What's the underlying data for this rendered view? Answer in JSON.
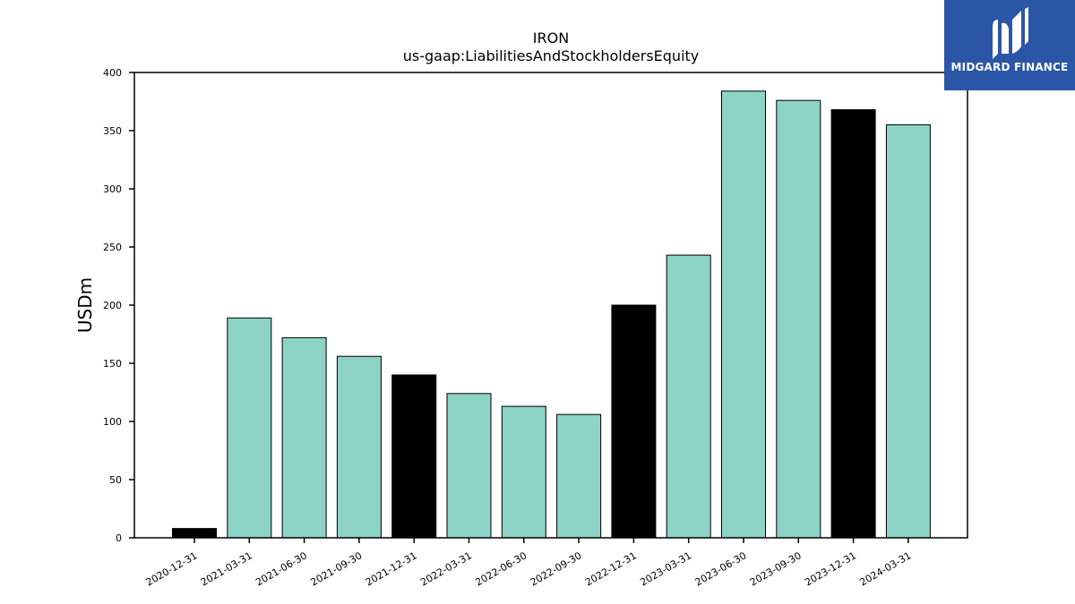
{
  "chart_data": {
    "type": "bar",
    "title": "IRON",
    "subtitle": "us-gaap:LiabilitiesAndStockholdersEquity",
    "xlabel": "",
    "ylabel": "USDm",
    "ylim": [
      0,
      400
    ],
    "yticks": [
      0,
      50,
      100,
      150,
      200,
      250,
      300,
      350,
      400
    ],
    "grid": false,
    "categories": [
      "2020-12-31",
      "2021-03-31",
      "2021-06-30",
      "2021-09-30",
      "2021-12-31",
      "2022-03-31",
      "2022-06-30",
      "2022-09-30",
      "2022-12-31",
      "2023-03-31",
      "2023-06-30",
      "2023-09-30",
      "2023-12-31",
      "2024-03-31"
    ],
    "values": [
      8,
      189,
      172,
      156,
      140,
      124,
      113,
      106,
      200,
      243,
      384,
      376,
      368,
      355
    ],
    "highlight_indices": [
      0,
      4,
      8,
      12
    ],
    "colors": {
      "bar": "#8dd3c7",
      "highlight": "#000000",
      "edge": "#000000"
    }
  },
  "logo": {
    "text": "MIDGARD FINANCE",
    "background": "#2b56a8"
  }
}
